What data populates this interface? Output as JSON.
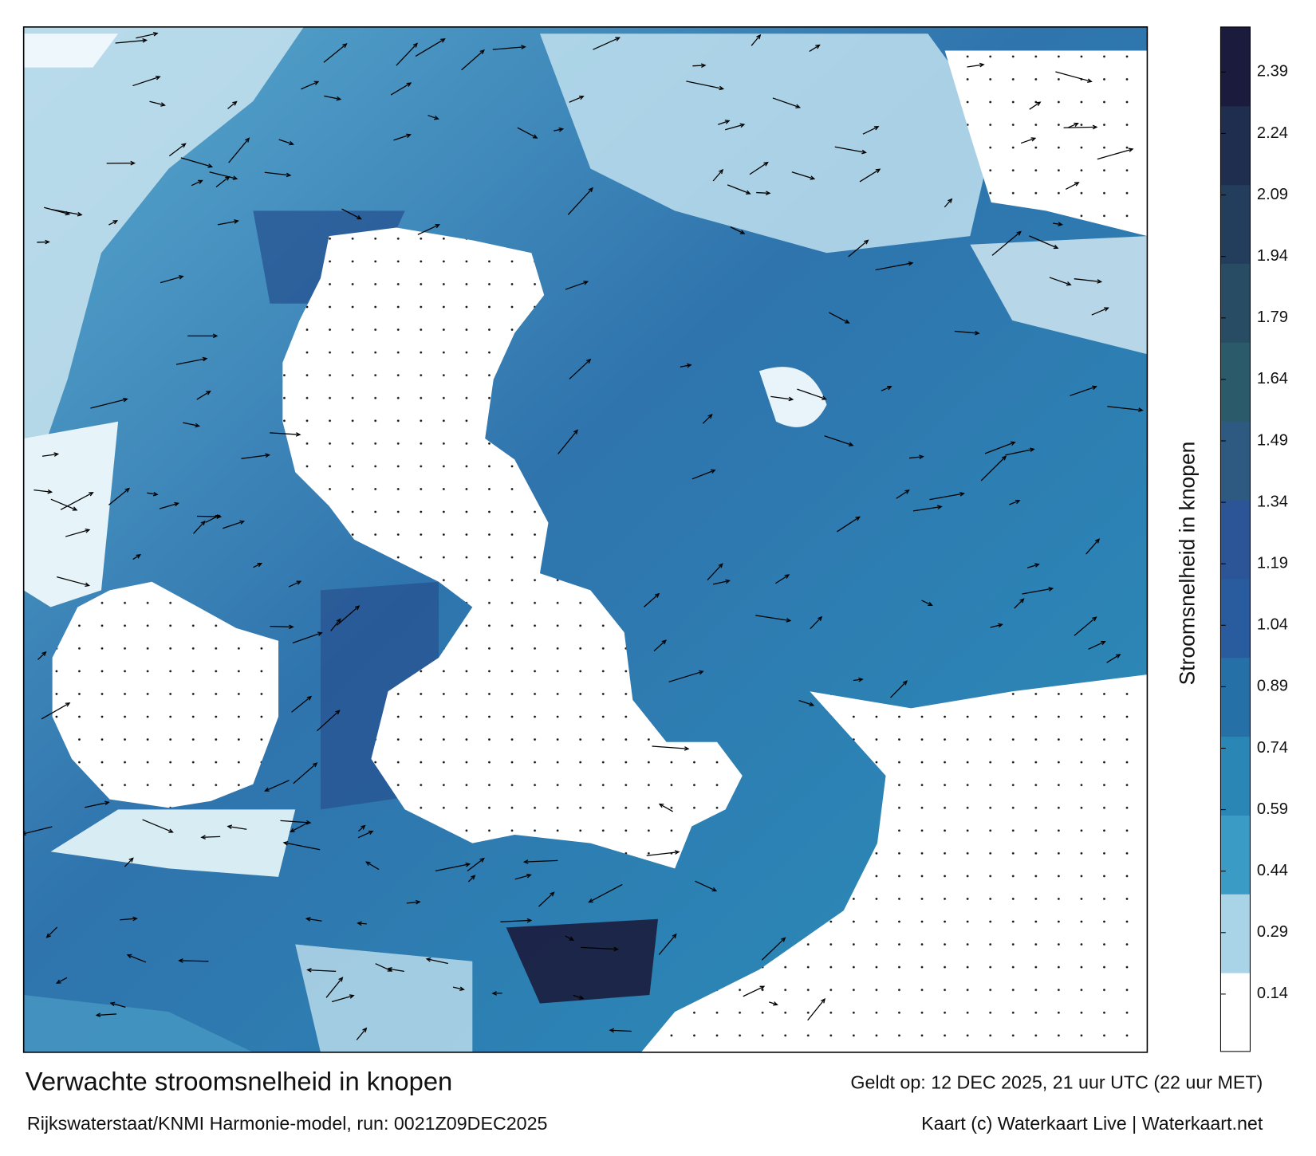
{
  "title": "Verwachte stroomsnelheid in knopen",
  "subtitle": "Rijkswaterstaat/KNMI Harmonie-model, run: 0021Z09DEC2025",
  "valid_time": "Geldt op: 12 DEC 2025, 21 uur UTC (22 uur MET)",
  "credit": "Kaart (c) Waterkaart Live | Waterkaart.net",
  "colorbar": {
    "label": "Stroomsnelheid in knopen",
    "range": [
      0,
      2.5
    ],
    "ticks": [
      0.14,
      0.29,
      0.44,
      0.59,
      0.74,
      0.89,
      1.04,
      1.19,
      1.34,
      1.49,
      1.64,
      1.79,
      1.94,
      2.09,
      2.24,
      2.39
    ],
    "colors": [
      "#ffffff",
      "#a9d3e6",
      "#3a9cc4",
      "#2a86b4",
      "#2670a8",
      "#295c9f",
      "#2c5597",
      "#2e5a82",
      "#2b5a6a",
      "#284c63",
      "#233d5c",
      "#1f2d4e",
      "#1b1c3d"
    ]
  }
}
